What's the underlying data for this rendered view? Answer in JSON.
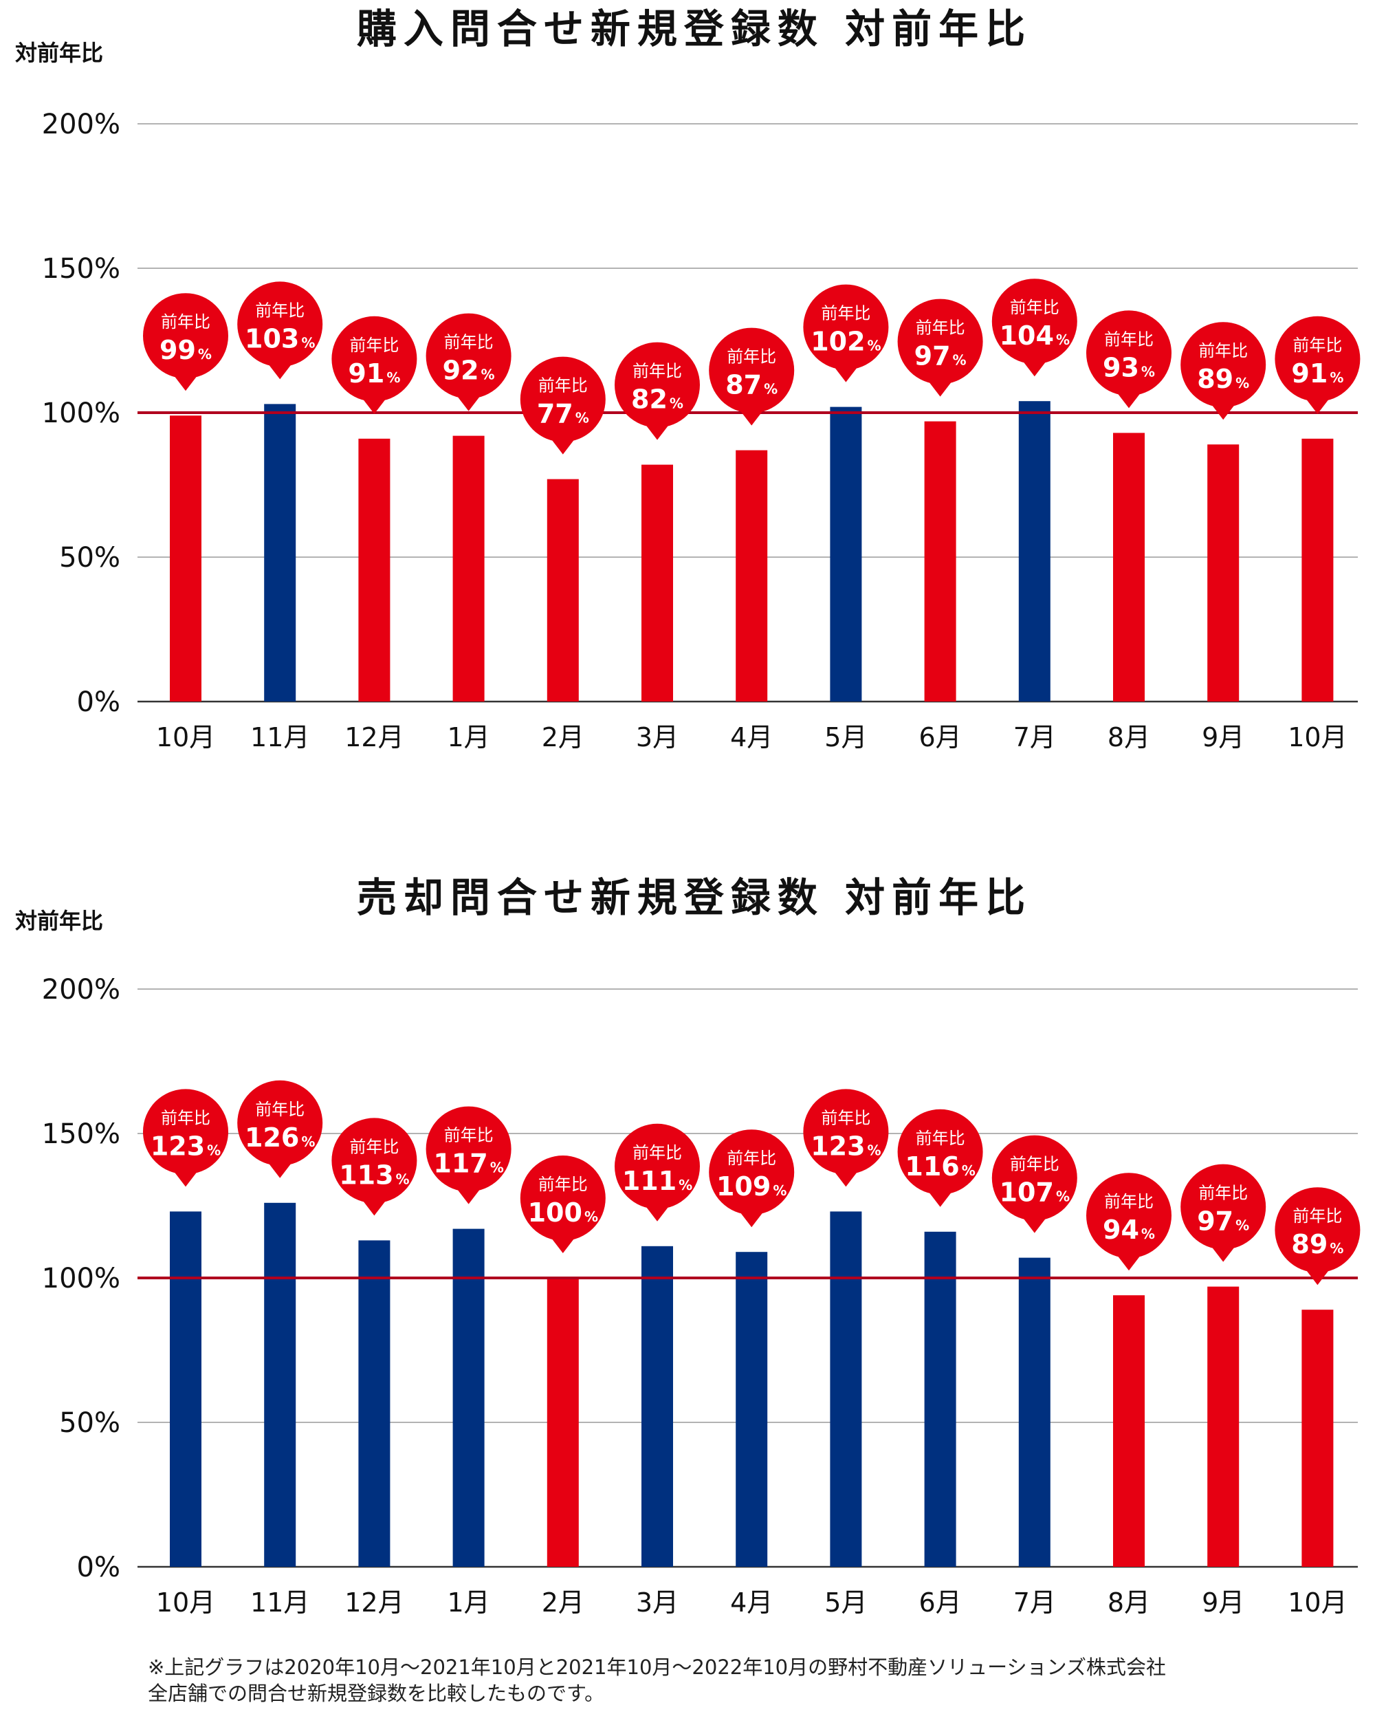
{
  "colors": {
    "below_100": "#e60012",
    "above_100": "#00307f",
    "reference_line": "#b0001e",
    "grid": "#9a9a9a",
    "bubble_text": "#ffffff"
  },
  "bubble_label": "前年比",
  "percent_sign": "%",
  "chart_data": [
    {
      "type": "bar",
      "title": "購入問合せ新規登録数 対前年比",
      "ylabel": "対前年比",
      "ylim": [
        0,
        200
      ],
      "yticks": [
        "0%",
        "50%",
        "100%",
        "150%",
        "200%"
      ],
      "reference_line": 100,
      "categories": [
        "10月",
        "11月",
        "12月",
        "1月",
        "2月",
        "3月",
        "4月",
        "5月",
        "6月",
        "7月",
        "8月",
        "9月",
        "10月"
      ],
      "values": [
        99,
        103,
        91,
        92,
        77,
        82,
        87,
        102,
        97,
        104,
        93,
        89,
        91
      ]
    },
    {
      "type": "bar",
      "title": "売却問合せ新規登録数 対前年比",
      "ylabel": "対前年比",
      "ylim": [
        0,
        200
      ],
      "yticks": [
        "0%",
        "50%",
        "100%",
        "150%",
        "200%"
      ],
      "reference_line": 100,
      "categories": [
        "10月",
        "11月",
        "12月",
        "1月",
        "2月",
        "3月",
        "4月",
        "5月",
        "6月",
        "7月",
        "8月",
        "9月",
        "10月"
      ],
      "values": [
        123,
        126,
        113,
        117,
        100,
        111,
        109,
        123,
        116,
        107,
        94,
        97,
        89
      ]
    }
  ],
  "footnote": {
    "line1": "※上記グラフは2020年10月～2021年10月と2021年10月～2022年10月の野村不動産ソリューションズ株式会社",
    "line2": "全店舗での問合せ新規登録数を比較したものです。"
  }
}
